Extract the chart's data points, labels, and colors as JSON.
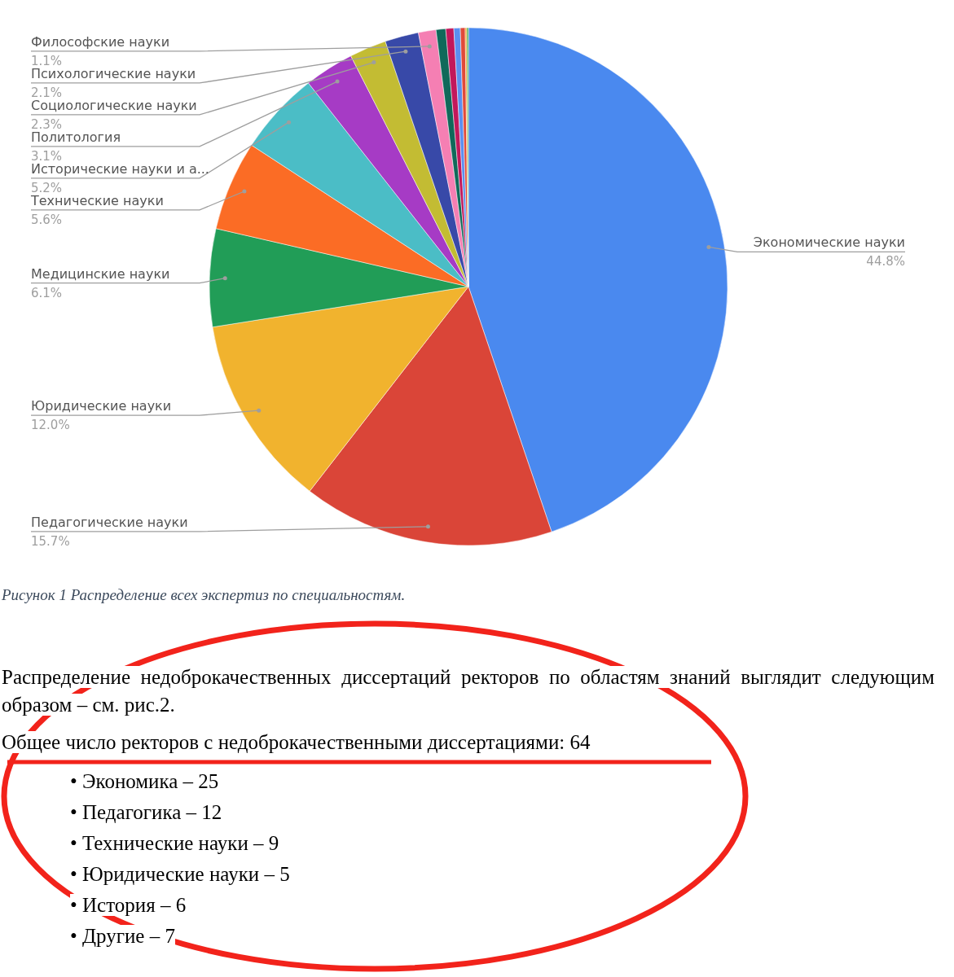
{
  "chart_data": {
    "type": "pie",
    "categories": [
      "Экономические науки",
      "Педагогические науки",
      "Юридические науки",
      "Медицинские науки",
      "Технические науки",
      "Исторические науки и а...",
      "Политология",
      "Социологические науки",
      "Психологические науки",
      "Философские науки",
      null,
      null,
      null,
      null,
      null,
      null
    ],
    "values": [
      44.8,
      15.7,
      12.0,
      6.1,
      5.6,
      5.2,
      3.1,
      2.3,
      2.1,
      1.1,
      0.6,
      0.5,
      0.4,
      0.3,
      0.1,
      0.1
    ],
    "value_labels": [
      "44.8%",
      "15.7%",
      "12.0%",
      "6.1%",
      "5.6%",
      "5.2%",
      "3.1%",
      "2.3%",
      "2.1%",
      "1.1%",
      null,
      null,
      null,
      null,
      null,
      null
    ],
    "colors": [
      "#4a89ef",
      "#da4538",
      "#f1b32e",
      "#219d57",
      "#fb6c25",
      "#4bbdc6",
      "#a63bc5",
      "#c3bc33",
      "#3849a8",
      "#f57fb3",
      "#10695a",
      "#c2185b",
      "#5b8ff0",
      "#e04a3a",
      "#f4a12a",
      "#4caf50"
    ],
    "annotations": [
      "Рисунок 1 Распределение всех экспертиз по специальностям.",
      "Распределение недоброкачественных диссертаций ректоров по областям знаний выглядит следующим образом – см. рис.2.",
      "Общее число ректоров с недоброкачественными диссертациями: 64",
      "• Экономика – 25",
      "• Педагогика – 12",
      "• Технические науки – 9",
      "• Юридические науки – 5",
      "• История – 6",
      "• Другие – 7"
    ]
  }
}
